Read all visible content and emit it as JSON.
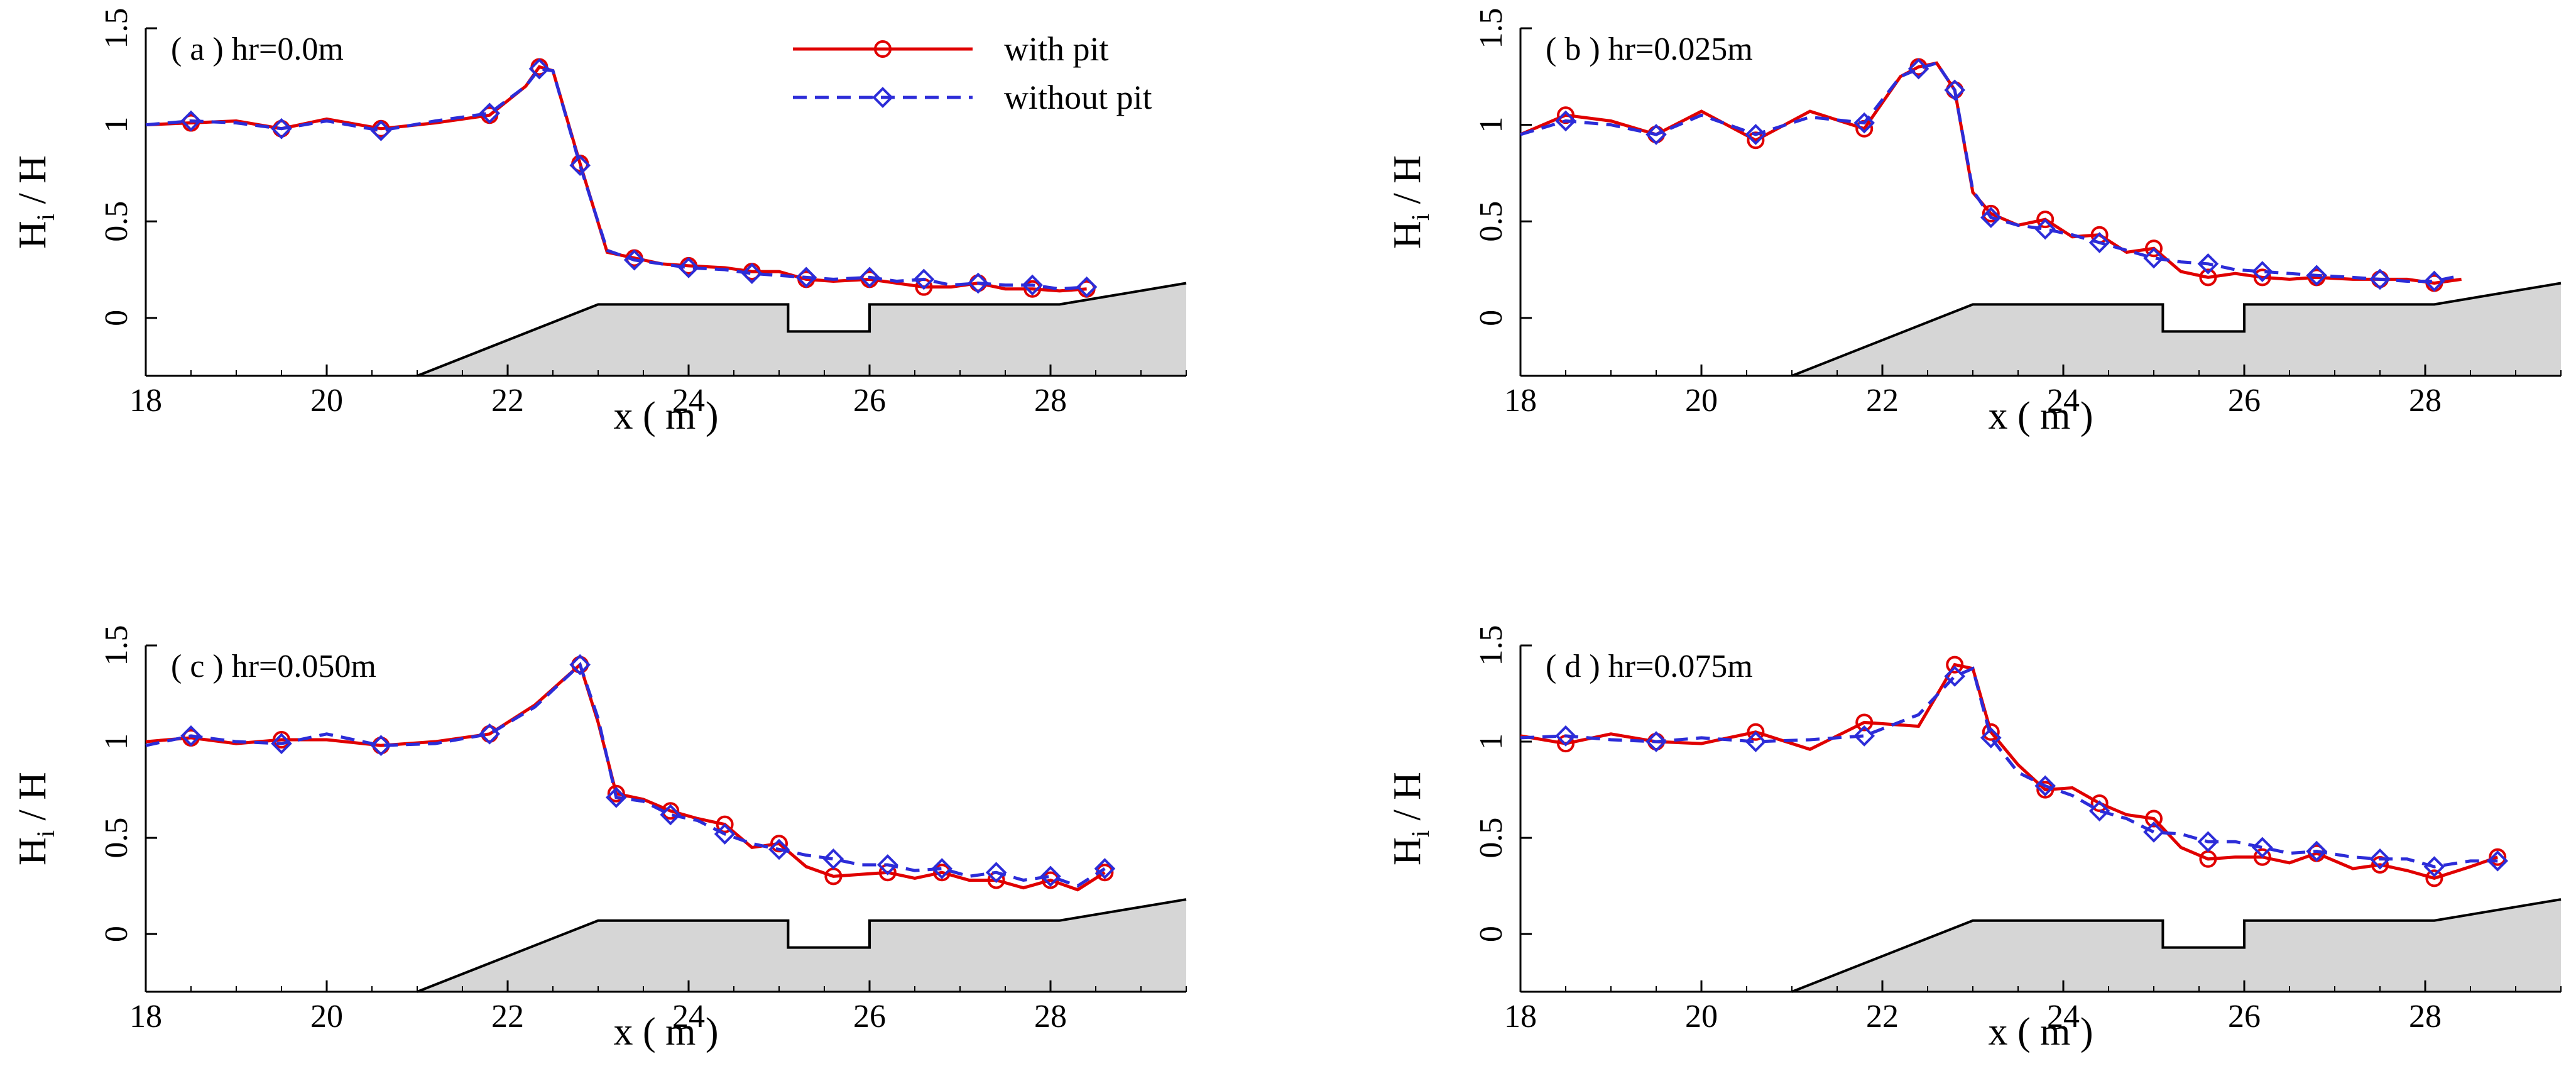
{
  "legend": [
    {
      "label": "with pit",
      "color": "#e00000",
      "dash": "solid",
      "marker": "circle"
    },
    {
      "label": "without pit",
      "color": "#2c2cd8",
      "dash": "dashed",
      "marker": "diamond"
    }
  ],
  "chart_data": [
    {
      "type": "line",
      "title": "( a ) hr=0.0m",
      "xlabel": "x ( m )",
      "ylabel": "H_i / H",
      "xlim": [
        18,
        29.5
      ],
      "ylim": [
        -0.3,
        1.5
      ],
      "xticks": [
        "18",
        "20",
        "22",
        "24",
        "26",
        "28"
      ],
      "yticks": [
        "0",
        "0.5",
        "1",
        "1.5"
      ],
      "bathymetry": {
        "x": [
          21,
          23,
          25.1,
          25.1,
          26,
          26,
          28.1,
          29.5
        ],
        "y": [
          -0.3,
          0.07,
          0.07,
          -0.07,
          -0.07,
          0.07,
          0.07,
          0.18
        ]
      },
      "series": [
        {
          "name": "with pit",
          "x": [
            18,
            18.5,
            19,
            19.5,
            20,
            20.6,
            21.2,
            21.8,
            22.2,
            22.35,
            22.5,
            22.8,
            23.1,
            23.4,
            23.7,
            24,
            24.4,
            24.7,
            25,
            25.3,
            25.6,
            26,
            26.3,
            26.6,
            26.9,
            27.2,
            27.5,
            27.8,
            28.1,
            28.4
          ],
          "y": [
            1.0,
            1.01,
            1.02,
            0.98,
            1.03,
            0.98,
            1.01,
            1.05,
            1.2,
            1.3,
            1.28,
            0.8,
            0.34,
            0.31,
            0.28,
            0.27,
            0.26,
            0.24,
            0.24,
            0.2,
            0.19,
            0.2,
            0.18,
            0.16,
            0.16,
            0.18,
            0.15,
            0.15,
            0.14,
            0.15
          ]
        },
        {
          "name": "without pit",
          "x": [
            18,
            18.5,
            19,
            19.5,
            20,
            20.6,
            21.2,
            21.8,
            22.2,
            22.35,
            22.5,
            22.8,
            23.1,
            23.4,
            23.7,
            24,
            24.4,
            24.7,
            25,
            25.3,
            25.6,
            26,
            26.3,
            26.6,
            26.9,
            27.2,
            27.5,
            27.8,
            28.1,
            28.4
          ],
          "y": [
            1.0,
            1.02,
            1.01,
            0.98,
            1.02,
            0.97,
            1.02,
            1.06,
            1.2,
            1.29,
            1.28,
            0.79,
            0.35,
            0.3,
            0.28,
            0.26,
            0.25,
            0.23,
            0.22,
            0.21,
            0.2,
            0.21,
            0.19,
            0.2,
            0.17,
            0.18,
            0.17,
            0.17,
            0.15,
            0.16
          ]
        }
      ]
    },
    {
      "type": "line",
      "title": "( b ) hr=0.025m",
      "xlabel": "x ( m )",
      "ylabel": "H_i / H",
      "xlim": [
        18,
        29.5
      ],
      "ylim": [
        -0.3,
        1.5
      ],
      "xticks": [
        "18",
        "20",
        "22",
        "24",
        "26",
        "28"
      ],
      "yticks": [
        "0",
        "0.5",
        "1",
        "1.5"
      ],
      "bathymetry": {
        "x": [
          21,
          23,
          25.1,
          25.1,
          26,
          26,
          28.1,
          29.5
        ],
        "y": [
          -0.3,
          0.07,
          0.07,
          -0.07,
          -0.07,
          0.07,
          0.07,
          0.18
        ]
      },
      "series": [
        {
          "name": "with pit",
          "x": [
            18,
            18.5,
            19,
            19.5,
            20,
            20.6,
            21.2,
            21.8,
            22.2,
            22.4,
            22.6,
            22.8,
            23,
            23.2,
            23.5,
            23.8,
            24.1,
            24.4,
            24.7,
            25,
            25.3,
            25.6,
            25.9,
            26.2,
            26.5,
            26.8,
            27.2,
            27.5,
            27.8,
            28.1,
            28.4
          ],
          "y": [
            0.95,
            1.05,
            1.02,
            0.95,
            1.07,
            0.92,
            1.07,
            0.98,
            1.25,
            1.3,
            1.32,
            1.18,
            0.65,
            0.54,
            0.48,
            0.51,
            0.42,
            0.43,
            0.34,
            0.36,
            0.24,
            0.21,
            0.23,
            0.21,
            0.2,
            0.21,
            0.2,
            0.2,
            0.2,
            0.18,
            0.2
          ]
        },
        {
          "name": "without pit",
          "x": [
            18,
            18.5,
            19,
            19.5,
            20,
            20.6,
            21.2,
            21.8,
            22.2,
            22.4,
            22.6,
            22.8,
            23,
            23.2,
            23.5,
            23.8,
            24.1,
            24.4,
            24.7,
            25,
            25.3,
            25.6,
            25.9,
            26.2,
            26.5,
            26.8,
            27.2,
            27.5,
            27.8,
            28.1,
            28.4
          ],
          "y": [
            0.95,
            1.02,
            1.0,
            0.95,
            1.05,
            0.95,
            1.04,
            1.01,
            1.25,
            1.29,
            1.32,
            1.18,
            0.66,
            0.52,
            0.48,
            0.46,
            0.43,
            0.39,
            0.35,
            0.31,
            0.29,
            0.28,
            0.25,
            0.24,
            0.23,
            0.22,
            0.21,
            0.2,
            0.19,
            0.19,
            0.22
          ]
        }
      ]
    },
    {
      "type": "line",
      "title": "( c ) hr=0.050m",
      "xlabel": "x ( m )",
      "ylabel": "H_i / H",
      "xlim": [
        18,
        29.5
      ],
      "ylim": [
        -0.3,
        1.5
      ],
      "xticks": [
        "18",
        "20",
        "22",
        "24",
        "26",
        "28"
      ],
      "yticks": [
        "0",
        "0.5",
        "1",
        "1.5"
      ],
      "bathymetry": {
        "x": [
          21,
          23,
          25.1,
          25.1,
          26,
          26,
          28.1,
          29.5
        ],
        "y": [
          -0.3,
          0.07,
          0.07,
          -0.07,
          -0.07,
          0.07,
          0.07,
          0.18
        ]
      },
      "series": [
        {
          "name": "with pit",
          "x": [
            18,
            18.5,
            19,
            19.5,
            20,
            20.6,
            21.2,
            21.8,
            22.3,
            22.8,
            23,
            23.2,
            23.5,
            23.8,
            24.1,
            24.4,
            24.7,
            25,
            25.3,
            25.6,
            25.9,
            26.2,
            26.5,
            26.8,
            27.1,
            27.4,
            27.7,
            28,
            28.3,
            28.6
          ],
          "y": [
            1.0,
            1.02,
            0.99,
            1.01,
            1.01,
            0.98,
            1.0,
            1.04,
            1.19,
            1.4,
            1.1,
            0.73,
            0.7,
            0.64,
            0.6,
            0.57,
            0.45,
            0.47,
            0.35,
            0.3,
            0.31,
            0.32,
            0.29,
            0.32,
            0.28,
            0.28,
            0.24,
            0.28,
            0.23,
            0.32
          ]
        },
        {
          "name": "without pit",
          "x": [
            18,
            18.5,
            19,
            19.5,
            20,
            20.6,
            21.2,
            21.8,
            22.3,
            22.8,
            23,
            23.2,
            23.5,
            23.8,
            24.1,
            24.4,
            24.7,
            25,
            25.3,
            25.6,
            25.9,
            26.2,
            26.5,
            26.8,
            27.1,
            27.4,
            27.7,
            28,
            28.3,
            28.6
          ],
          "y": [
            0.98,
            1.03,
            1.0,
            0.99,
            1.04,
            0.98,
            0.99,
            1.04,
            1.18,
            1.4,
            1.12,
            0.71,
            0.69,
            0.62,
            0.59,
            0.52,
            0.47,
            0.44,
            0.41,
            0.39,
            0.36,
            0.36,
            0.33,
            0.34,
            0.3,
            0.32,
            0.28,
            0.3,
            0.25,
            0.34
          ]
        }
      ]
    },
    {
      "type": "line",
      "title": "( d ) hr=0.075m",
      "xlabel": "x ( m )",
      "ylabel": "H_i / H",
      "xlim": [
        18,
        29.5
      ],
      "ylim": [
        -0.3,
        1.5
      ],
      "xticks": [
        "18",
        "20",
        "22",
        "24",
        "26",
        "28"
      ],
      "yticks": [
        "0",
        "0.5",
        "1",
        "1.5"
      ],
      "bathymetry": {
        "x": [
          21,
          23,
          25.1,
          25.1,
          26,
          26,
          28.1,
          29.5
        ],
        "y": [
          -0.3,
          0.07,
          0.07,
          -0.07,
          -0.07,
          0.07,
          0.07,
          0.18
        ]
      },
      "series": [
        {
          "name": "with pit",
          "x": [
            18,
            18.5,
            19,
            19.5,
            20,
            20.6,
            21.2,
            21.8,
            22.4,
            22.8,
            23,
            23.2,
            23.5,
            23.8,
            24.1,
            24.4,
            24.7,
            25,
            25.3,
            25.6,
            25.9,
            26.2,
            26.5,
            26.8,
            27.2,
            27.5,
            27.8,
            28.1,
            28.5,
            28.8
          ],
          "y": [
            1.03,
            0.99,
            1.04,
            1.0,
            0.99,
            1.05,
            0.96,
            1.1,
            1.08,
            1.4,
            1.38,
            1.05,
            0.88,
            0.75,
            0.76,
            0.68,
            0.62,
            0.6,
            0.45,
            0.39,
            0.4,
            0.4,
            0.37,
            0.42,
            0.34,
            0.36,
            0.33,
            0.29,
            0.35,
            0.4
          ]
        },
        {
          "name": "without pit",
          "x": [
            18,
            18.5,
            19,
            19.5,
            20,
            20.6,
            21.2,
            21.8,
            22.4,
            22.8,
            23,
            23.2,
            23.5,
            23.8,
            24.1,
            24.4,
            24.7,
            25,
            25.3,
            25.6,
            25.9,
            26.2,
            26.5,
            26.8,
            27.2,
            27.5,
            27.8,
            28.1,
            28.5,
            28.8
          ],
          "y": [
            1.02,
            1.03,
            1.01,
            1.0,
            1.02,
            1.0,
            1.01,
            1.03,
            1.14,
            1.34,
            1.38,
            1.02,
            0.84,
            0.77,
            0.72,
            0.64,
            0.6,
            0.53,
            0.52,
            0.48,
            0.48,
            0.45,
            0.42,
            0.43,
            0.4,
            0.39,
            0.39,
            0.35,
            0.38,
            0.38
          ]
        }
      ]
    }
  ]
}
